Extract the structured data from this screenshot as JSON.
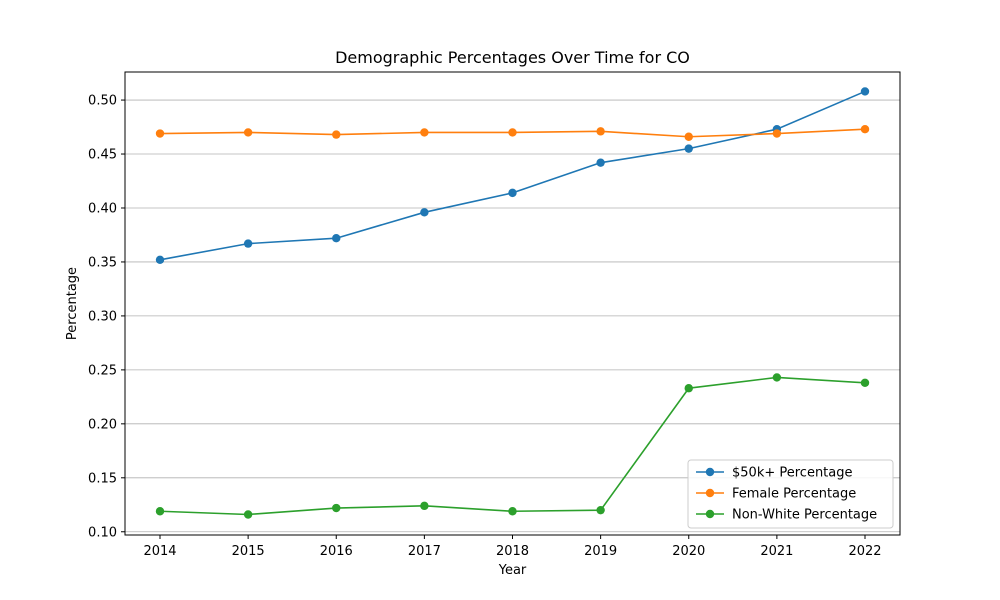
{
  "chart_data": {
    "type": "line",
    "title": "Demographic Percentages Over Time for CO",
    "xlabel": "Year",
    "ylabel": "Percentage",
    "x": [
      "2014",
      "2015",
      "2016",
      "2017",
      "2018",
      "2019",
      "2020",
      "2021",
      "2022"
    ],
    "yticks": [
      "0.10",
      "0.15",
      "0.20",
      "0.25",
      "0.30",
      "0.35",
      "0.40",
      "0.45",
      "0.50"
    ],
    "ylim": [
      0.097,
      0.526
    ],
    "grid": "horizontal",
    "legend_position": "lower-right",
    "series": [
      {
        "name": "$50k+ Percentage",
        "color": "#1f77b4",
        "marker": "circle",
        "values": [
          0.352,
          0.367,
          0.372,
          0.396,
          0.414,
          0.442,
          0.455,
          0.473,
          0.508
        ]
      },
      {
        "name": "Female Percentage",
        "color": "#ff7f0e",
        "marker": "circle",
        "values": [
          0.469,
          0.47,
          0.468,
          0.47,
          0.47,
          0.471,
          0.466,
          0.469,
          0.473
        ]
      },
      {
        "name": "Non-White Percentage",
        "color": "#2ca02c",
        "marker": "circle",
        "values": [
          0.119,
          0.116,
          0.122,
          0.124,
          0.119,
          0.12,
          0.233,
          0.243,
          0.238
        ]
      }
    ]
  }
}
